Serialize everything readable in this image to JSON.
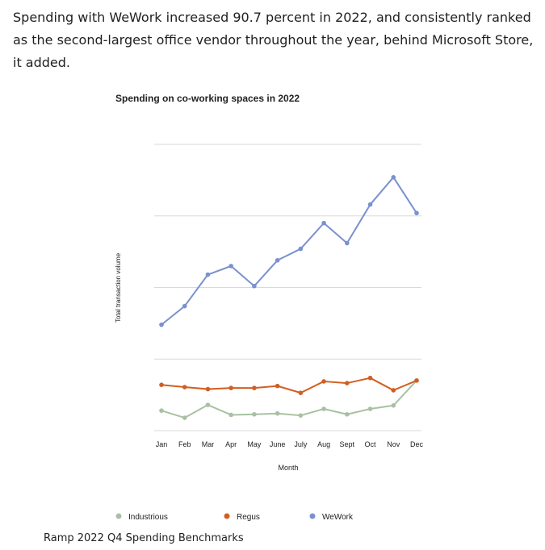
{
  "article": {
    "intro": "Spending with WeWork increased 90.7 percent in 2022, and consistently ranked as the second-largest office vendor throughout the year, behind Microsoft Store, it added."
  },
  "caption": "Ramp 2022 Q4 Spending Benchmarks",
  "chart_data": {
    "type": "line",
    "title": "Spending on co-working spaces in 2022",
    "xlabel": "Month",
    "ylabel": "Total transaction volume",
    "categories": [
      "Jan",
      "Feb",
      "Mar",
      "Apr",
      "May",
      "June",
      "July",
      "Aug",
      "Sept",
      "Oct",
      "Nov",
      "Dec"
    ],
    "ylim": [
      0,
      100
    ],
    "grid": true,
    "legend_position": "bottom",
    "series": [
      {
        "name": "Industrious",
        "color": "#a9c1a3",
        "values": [
          7,
          4.5,
          9,
          5.5,
          5.7,
          6,
          5.3,
          7.6,
          5.7,
          7.6,
          8.8,
          17.5
        ]
      },
      {
        "name": "Regus",
        "color": "#d15f22",
        "values": [
          16,
          15.2,
          14.5,
          14.9,
          14.9,
          15.6,
          13.2,
          17.2,
          16.6,
          18.4,
          14.1,
          17.5
        ]
      },
      {
        "name": "WeWork",
        "color": "#7a91cf",
        "values": [
          37,
          43.5,
          54.5,
          57.5,
          50.5,
          59.5,
          63.5,
          72.5,
          65.5,
          79,
          88.5,
          76
        ]
      }
    ]
  }
}
